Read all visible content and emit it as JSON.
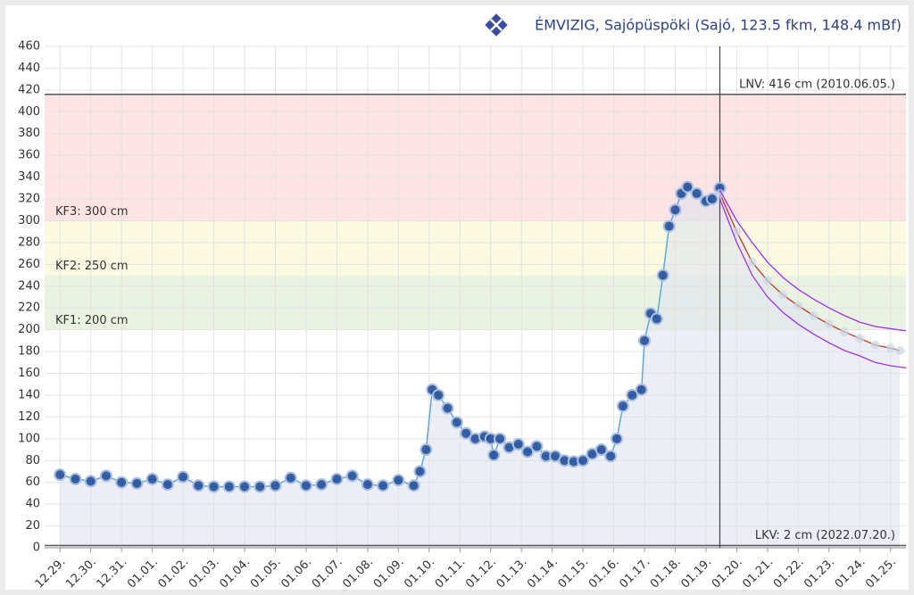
{
  "chart_data": {
    "type": "line",
    "title": "ÉMVIZIG, Sajópüspöki (Sajó, 123.5 fkm, 148.4 mBf)",
    "xlim": [
      -0.5,
      27.5
    ],
    "xticks": [
      {
        "value": 0,
        "label": "12.29."
      },
      {
        "value": 1,
        "label": "12.30."
      },
      {
        "value": 2,
        "label": "12.31."
      },
      {
        "value": 3,
        "label": "01.01."
      },
      {
        "value": 4,
        "label": "01.02."
      },
      {
        "value": 5,
        "label": "01.03."
      },
      {
        "value": 6,
        "label": "01.04."
      },
      {
        "value": 7,
        "label": "01.05."
      },
      {
        "value": 8,
        "label": "01.06."
      },
      {
        "value": 9,
        "label": "01.07."
      },
      {
        "value": 10,
        "label": "01.08."
      },
      {
        "value": 11,
        "label": "01.09."
      },
      {
        "value": 12,
        "label": "01.10."
      },
      {
        "value": 13,
        "label": "01.11."
      },
      {
        "value": 14,
        "label": "01.12."
      },
      {
        "value": 15,
        "label": "01.13."
      },
      {
        "value": 16,
        "label": "01.14."
      },
      {
        "value": 17,
        "label": "01.15."
      },
      {
        "value": 18,
        "label": "01.16."
      },
      {
        "value": 19,
        "label": "01.17."
      },
      {
        "value": 20,
        "label": "01.18."
      },
      {
        "value": 21,
        "label": "01.19."
      },
      {
        "value": 22,
        "label": "01.20."
      },
      {
        "value": 23,
        "label": "01.21."
      },
      {
        "value": 24,
        "label": "01.22."
      },
      {
        "value": 25,
        "label": "01.23."
      },
      {
        "value": 26,
        "label": "01.24."
      },
      {
        "value": 27,
        "label": "01.25."
      }
    ],
    "ylim": [
      0,
      460
    ],
    "yticks": [
      0,
      20,
      40,
      60,
      80,
      100,
      120,
      140,
      160,
      180,
      200,
      220,
      240,
      260,
      280,
      300,
      320,
      340,
      360,
      380,
      400,
      420,
      440,
      460
    ],
    "grid": true,
    "now_x": 21.45,
    "thresholds": [
      {
        "label": "LNV: 416 cm (2010.06.05.)",
        "value": 416,
        "kind": "line",
        "color": "#555555"
      },
      {
        "label": "KF3: 300 cm",
        "value": 300,
        "kind": "band",
        "color": "#fde3e4"
      },
      {
        "label": "KF2: 250 cm",
        "value": 250,
        "kind": "band",
        "color": "#fbfae0"
      },
      {
        "label": "KF1: 200 cm",
        "value": 200,
        "kind": "band",
        "color": "#eaf3e2"
      },
      {
        "label": "LKV: 2 cm (2022.07.20.)",
        "value": 2,
        "kind": "line",
        "color": "#555555"
      }
    ],
    "series": [
      {
        "name": "measured",
        "kind": "dots",
        "color": "#234f9c",
        "x": [
          0,
          0.5,
          1,
          1.5,
          2,
          2.5,
          3,
          3.5,
          4,
          4.5,
          5,
          5.5,
          6,
          6.5,
          7,
          7.5,
          8,
          8.5,
          9,
          9.5,
          10,
          10.5,
          11,
          11.5,
          11.7,
          11.9,
          12.1,
          12.3,
          12.6,
          12.9,
          13.2,
          13.5,
          13.8,
          14.0,
          14.1,
          14.3,
          14.6,
          14.9,
          15.2,
          15.5,
          15.8,
          16.1,
          16.4,
          16.7,
          17.0,
          17.3,
          17.6,
          17.9,
          18.1,
          18.3,
          18.6,
          18.9,
          19.0,
          19.2,
          19.4,
          19.6,
          19.8,
          20.0,
          20.2,
          20.4,
          20.7,
          21.0,
          21.2,
          21.45
        ],
        "values": [
          67,
          63,
          61,
          66,
          60,
          59,
          63,
          58,
          65,
          57,
          56,
          56,
          56,
          56,
          57,
          64,
          57,
          58,
          63,
          66,
          58,
          57,
          62,
          57,
          70,
          90,
          145,
          140,
          128,
          115,
          105,
          100,
          102,
          100,
          85,
          100,
          92,
          95,
          88,
          93,
          84,
          84,
          80,
          79,
          80,
          86,
          90,
          84,
          100,
          130,
          140,
          145,
          190,
          215,
          210,
          250,
          295,
          310,
          325,
          331,
          325,
          318,
          320,
          330
        ]
      },
      {
        "name": "forecast",
        "kind": "line",
        "color": "#c0392b",
        "x": [
          21.45,
          22,
          22.5,
          23,
          23.5,
          24,
          24.5,
          25,
          25.5,
          26,
          26.5,
          27,
          27.3
        ],
        "values": [
          325,
          290,
          262,
          245,
          232,
          222,
          213,
          205,
          198,
          192,
          186,
          183,
          181
        ]
      },
      {
        "name": "upper",
        "kind": "line",
        "color": "#9b30ff",
        "x": [
          21.45,
          22,
          22.5,
          23,
          23.5,
          24,
          24.5,
          25,
          25.5,
          26,
          26.5,
          27,
          27.5
        ],
        "values": [
          328,
          300,
          280,
          262,
          248,
          237,
          228,
          220,
          213,
          207,
          203,
          201,
          199
        ]
      },
      {
        "name": "lower",
        "kind": "line",
        "color": "#9b30ff",
        "x": [
          21.45,
          22,
          22.5,
          23,
          23.5,
          24,
          24.5,
          25,
          25.5,
          26,
          26.5,
          27,
          27.5
        ],
        "values": [
          320,
          280,
          250,
          230,
          216,
          205,
          196,
          188,
          181,
          176,
          170,
          167,
          165
        ]
      }
    ]
  }
}
